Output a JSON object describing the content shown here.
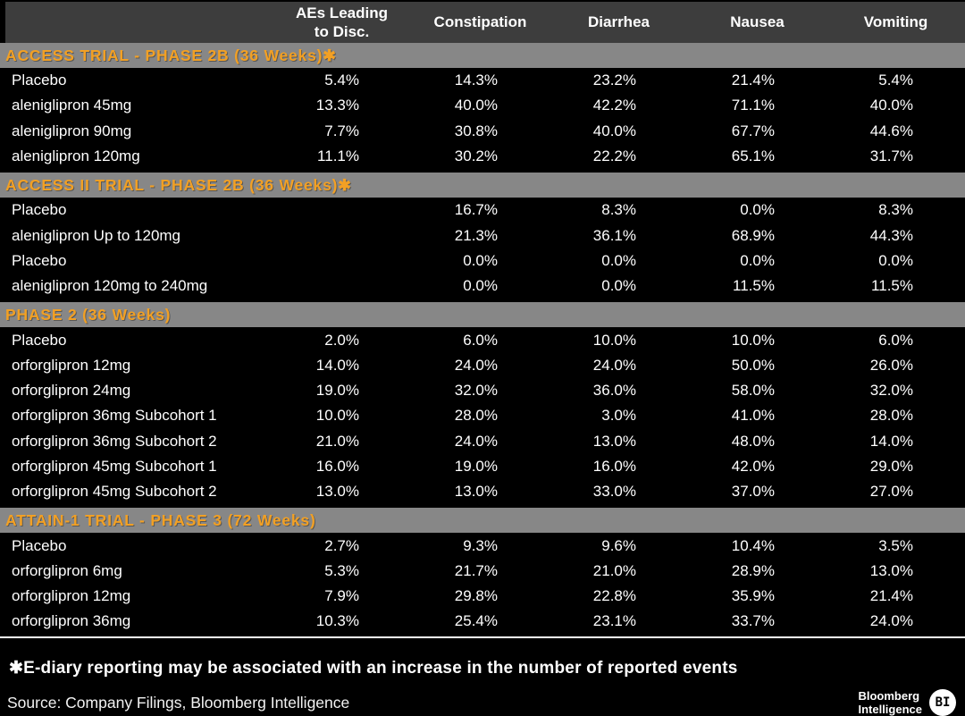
{
  "chart_data": {
    "type": "table",
    "columns": [
      "AEs Leading to Disc.",
      "Constipation",
      "Diarrhea",
      "Nausea",
      "Vomiting"
    ],
    "sections": [
      {
        "title": "ACCESS TRIAL - PHASE 2B (36 Weeks)✱",
        "rows": [
          [
            "Placebo",
            "5.4%",
            "14.3%",
            "23.2%",
            "21.4%",
            "5.4%"
          ],
          [
            "aleniglipron 45mg",
            "13.3%",
            "40.0%",
            "42.2%",
            "71.1%",
            "40.0%"
          ],
          [
            "aleniglipron 90mg",
            "7.7%",
            "30.8%",
            "40.0%",
            "67.7%",
            "44.6%"
          ],
          [
            "aleniglipron 120mg",
            "11.1%",
            "30.2%",
            "22.2%",
            "65.1%",
            "31.7%"
          ]
        ]
      },
      {
        "title": "ACCESS II TRIAL - PHASE 2B (36 Weeks)✱",
        "rows": [
          [
            "Placebo",
            "",
            "16.7%",
            "8.3%",
            "0.0%",
            "8.3%"
          ],
          [
            "aleniglipron Up to 120mg",
            "",
            "21.3%",
            "36.1%",
            "68.9%",
            "44.3%"
          ],
          [
            "Placebo",
            "",
            "0.0%",
            "0.0%",
            "0.0%",
            "0.0%"
          ],
          [
            "aleniglipron 120mg to 240mg",
            "",
            "0.0%",
            "0.0%",
            "11.5%",
            "11.5%"
          ]
        ]
      },
      {
        "title": "PHASE 2 (36 Weeks)",
        "rows": [
          [
            "Placebo",
            "2.0%",
            "6.0%",
            "10.0%",
            "10.0%",
            "6.0%"
          ],
          [
            "orforglipron 12mg",
            "14.0%",
            "24.0%",
            "24.0%",
            "50.0%",
            "26.0%"
          ],
          [
            "orforglipron 24mg",
            "19.0%",
            "32.0%",
            "36.0%",
            "58.0%",
            "32.0%"
          ],
          [
            "orforglipron 36mg Subcohort 1",
            "10.0%",
            "28.0%",
            "3.0%",
            "41.0%",
            "28.0%"
          ],
          [
            "orforglipron 36mg Subcohort 2",
            "21.0%",
            "24.0%",
            "13.0%",
            "48.0%",
            "14.0%"
          ],
          [
            "orforglipron 45mg Subcohort 1",
            "16.0%",
            "19.0%",
            "16.0%",
            "42.0%",
            "29.0%"
          ],
          [
            "orforglipron 45mg Subcohort 2",
            "13.0%",
            "13.0%",
            "33.0%",
            "37.0%",
            "27.0%"
          ]
        ]
      },
      {
        "title": "ATTAIN-1 TRIAL - PHASE 3 (72 Weeks)",
        "rows": [
          [
            "Placebo",
            "2.7%",
            "9.3%",
            "9.6%",
            "10.4%",
            "3.5%"
          ],
          [
            "orforglipron 6mg",
            "5.3%",
            "21.7%",
            "21.0%",
            "28.9%",
            "13.0%"
          ],
          [
            "orforglipron 12mg",
            "7.9%",
            "29.8%",
            "22.8%",
            "35.9%",
            "21.4%"
          ],
          [
            "orforglipron 36mg",
            "10.3%",
            "25.4%",
            "23.1%",
            "33.7%",
            "24.0%"
          ]
        ]
      }
    ]
  },
  "footer": {
    "footnote": "✱E-diary reporting may be associated with an increase in the number of reported events",
    "source": "Source: Company Filings, Bloomberg Intelligence",
    "logo": {
      "line1": "Bloomberg",
      "line2": "Intelligence",
      "badge": "BI"
    }
  },
  "colors": {
    "background": "#000000",
    "header_gray": "#3D3D3D",
    "section_bar_gray": "#878787",
    "accent_orange": "#F2A024",
    "text_white": "#FFFFFF"
  }
}
